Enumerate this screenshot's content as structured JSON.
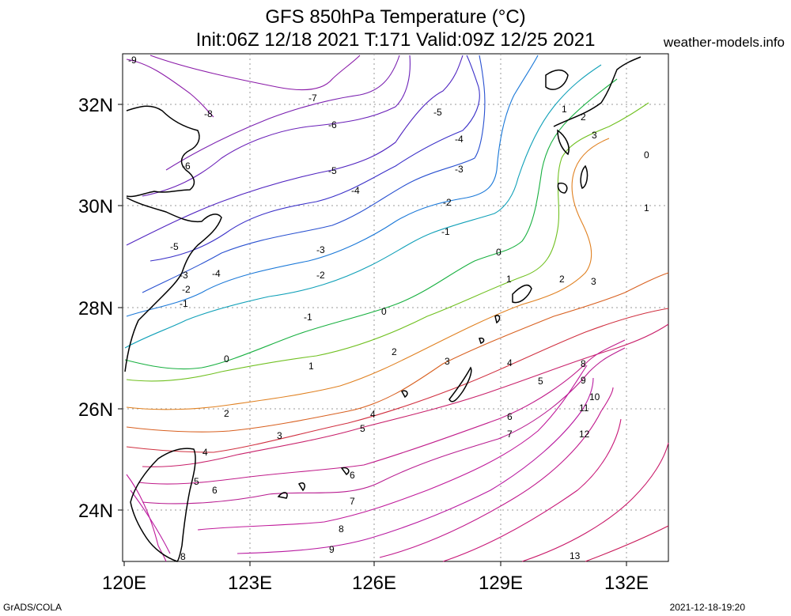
{
  "header": {
    "title": "GFS 850hPa Temperature (°C)",
    "subtitle": "Init:06Z 12/18 2021 T:171 Valid:09Z 12/25 2021",
    "site": "weather-models.info"
  },
  "footer": {
    "software": "GrADS/COLA",
    "timestamp": "2021-12-18-19:20"
  },
  "map": {
    "lon_labels": [
      "120E",
      "123E",
      "126E",
      "129E",
      "132E"
    ],
    "lat_labels": [
      "32N",
      "30N",
      "28N",
      "26N",
      "24N"
    ],
    "grid": "dotted",
    "contour_labels": {
      "m9": "-9",
      "m8": "-8",
      "m7": "-7",
      "m6": "-6",
      "m5": "-5",
      "m4": "-4",
      "m3": "-3",
      "m2": "-2",
      "m1": "-1",
      "z0": "0",
      "p1": "1",
      "p2": "2",
      "p3": "3",
      "p4": "4",
      "p5": "5",
      "p6": "6",
      "p7": "7",
      "p8": "8",
      "p9": "9",
      "p10": "10",
      "p11": "11",
      "p12": "12",
      "p13": "13"
    }
  }
}
